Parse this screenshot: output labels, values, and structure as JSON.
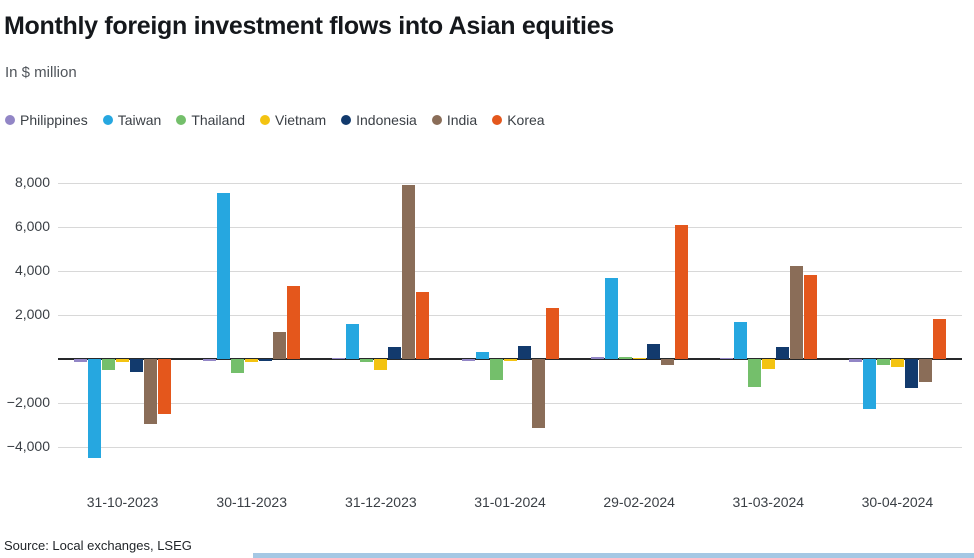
{
  "header": {
    "title": "Monthly foreign investment flows into Asian equities",
    "subtitle": "In $ million"
  },
  "footer": {
    "source": "Source: Local exchanges, LSEG"
  },
  "chart_data": {
    "type": "bar",
    "title": "Monthly foreign investment flows into Asian equities",
    "subtitle": "In $ million",
    "categories": [
      "31-10-2023",
      "30-11-2023",
      "31-12-2023",
      "31-01-2024",
      "29-02-2024",
      "31-03-2024",
      "30-04-2024"
    ],
    "series": [
      {
        "name": "Philippines",
        "color": "#9286c6",
        "values": [
          -150,
          -60,
          60,
          -80,
          80,
          50,
          -120
        ]
      },
      {
        "name": "Taiwan",
        "color": "#26a7e0",
        "values": [
          -4500,
          7550,
          1600,
          300,
          3700,
          1700,
          -2250
        ]
      },
      {
        "name": "Thailand",
        "color": "#74bf6b",
        "values": [
          -500,
          -650,
          -120,
          -950,
          100,
          -1250,
          -250
        ]
      },
      {
        "name": "Vietnam",
        "color": "#f3c311",
        "values": [
          -150,
          -120,
          -500,
          -80,
          50,
          -450,
          -350
        ]
      },
      {
        "name": "Indonesia",
        "color": "#123a6d",
        "values": [
          -600,
          -100,
          550,
          600,
          700,
          550,
          -1300
        ]
      },
      {
        "name": "India",
        "color": "#8a6d58",
        "values": [
          -2950,
          1250,
          7900,
          -3150,
          -250,
          4250,
          -1050
        ]
      },
      {
        "name": "Korea",
        "color": "#e4571c",
        "values": [
          -2500,
          3300,
          3050,
          2300,
          6100,
          3800,
          1800
        ]
      }
    ],
    "xlabel": "",
    "ylabel": "In $ million",
    "ylim": [
      -5090,
      8000
    ],
    "yticks": [
      -4000,
      -2000,
      0,
      2000,
      4000,
      6000,
      8000
    ],
    "grid": true,
    "legend_position": "top"
  }
}
